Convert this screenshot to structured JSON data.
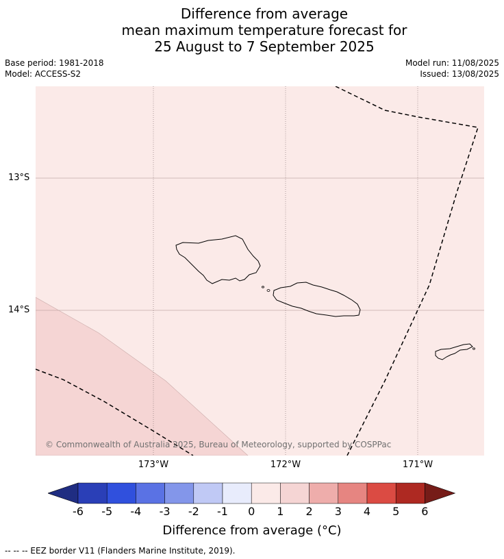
{
  "title": {
    "line1": "Difference from average",
    "line2": "mean maximum temperature forecast for",
    "line3": "25 August to 7 September 2025"
  },
  "meta": {
    "base_period": "Base period: 1981-2018",
    "model": "Model: ACCESS-S2",
    "model_run": "Model run: 11/08/2025",
    "issued": "Issued: 13/08/2025"
  },
  "map": {
    "background_color": "#fbeae8",
    "warmer_region_color": "#f5d5d4",
    "lat_labels": [
      "13°S",
      "14°S"
    ],
    "lon_labels": [
      "173°W",
      "172°W",
      "171°W"
    ],
    "copyright": "© Commonwealth of Australia 2025, Bureau of Meteorology, supported by COSPPac"
  },
  "colorbar": {
    "ticks": [
      "-6",
      "-5",
      "-4",
      "-3",
      "-2",
      "-1",
      "0",
      "1",
      "2",
      "3",
      "4",
      "5",
      "6"
    ],
    "colors": [
      "#1f2d82",
      "#2a3fb7",
      "#3050dd",
      "#5a72e4",
      "#8396ea",
      "#c0c9f5",
      "#e8ecfc",
      "#fbeae8",
      "#f5d5d4",
      "#eeadab",
      "#e68581",
      "#db4b43",
      "#ae2922",
      "#761c18"
    ],
    "label": "Difference from average (°C)"
  },
  "footnote": "--  --  -- EEZ border V11 (Flanders Marine Institute, 2019)."
}
